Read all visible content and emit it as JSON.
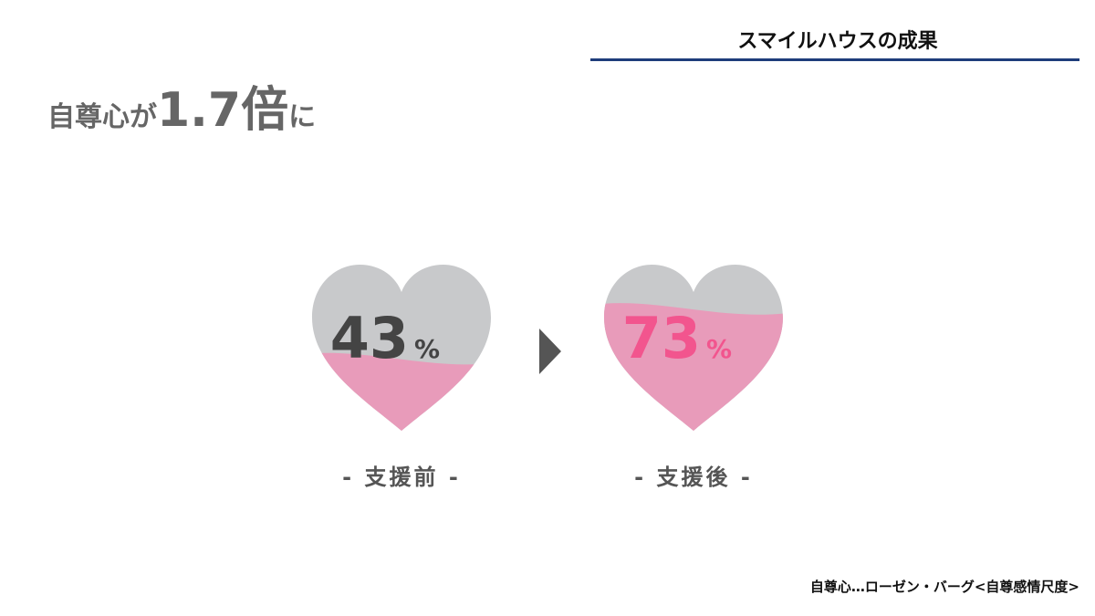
{
  "header": {
    "title": "スマイルハウスの成果"
  },
  "headline": {
    "prefix": "自尊心が",
    "emphasis": "1.7倍",
    "suffix": "に"
  },
  "ylim": [
    0,
    100
  ],
  "hearts": [
    {
      "value": 43,
      "unit": "%",
      "label": "- 支援前 -",
      "fill_color": "#e89bba",
      "number_color": "#444444"
    },
    {
      "value": 73,
      "unit": "%",
      "label": "- 支援後 -",
      "fill_color": "#e89bba",
      "number_color": "#f2558e"
    }
  ],
  "footnote": "自尊心…ローゼン・バーグ<自尊感情尺度>"
}
